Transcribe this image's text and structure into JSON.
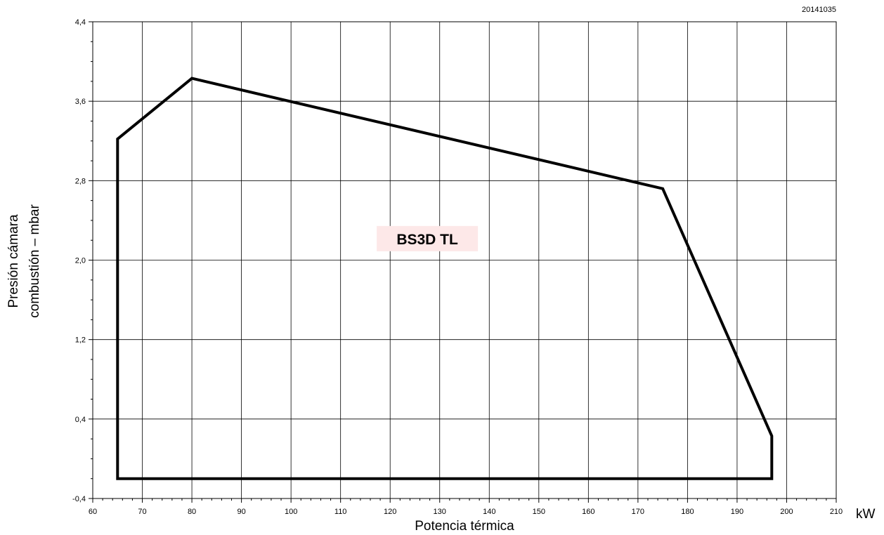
{
  "chart_data": {
    "type": "area",
    "code": "20141035",
    "xlabel": "Potencia térmica",
    "xunit": "kW",
    "ylabel_lines": [
      "Presión cámara",
      "combustión – mbar"
    ],
    "xlim": [
      60,
      210
    ],
    "ylim": [
      -0.4,
      4.4
    ],
    "x_ticks": [
      60,
      70,
      80,
      90,
      100,
      110,
      120,
      130,
      140,
      150,
      160,
      170,
      180,
      190,
      200,
      210
    ],
    "y_ticks": [
      -0.4,
      0.4,
      1.2,
      2.0,
      2.8,
      3.6,
      4.4
    ],
    "y_tick_labels": [
      "-0,4",
      "0,4",
      "1,2",
      "2,0",
      "2,8",
      "3,6",
      "4,4"
    ],
    "y_minor_step": 0.2,
    "x_minor_step": 2,
    "grid": true,
    "series": [
      {
        "name": "BS3D TL",
        "points": [
          [
            65,
            -0.2
          ],
          [
            65,
            3.22
          ],
          [
            80,
            3.83
          ],
          [
            175,
            2.72
          ],
          [
            197,
            0.23
          ],
          [
            197,
            -0.2
          ]
        ]
      }
    ],
    "label_box_color": "#fde8e8",
    "line_color": "#000000"
  }
}
